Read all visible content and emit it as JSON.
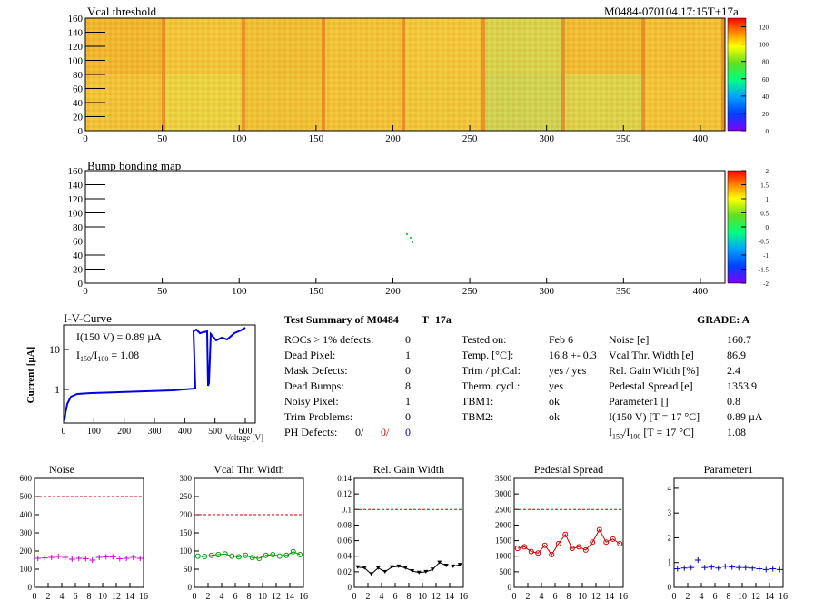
{
  "vcal_map": {
    "title": "Vcal threshold",
    "module_label": "M0484-070104.17:15T+17a",
    "x_ticks": [
      "0",
      "50",
      "100",
      "150",
      "200",
      "250",
      "300",
      "350",
      "400"
    ],
    "y_ticks": [
      "0",
      "20",
      "40",
      "60",
      "80",
      "100",
      "120",
      "140",
      "160"
    ],
    "z_ticks": [
      "0",
      "20",
      "40",
      "60",
      "80",
      "100",
      "120"
    ]
  },
  "bump_map": {
    "title": "Bump bonding map",
    "x_ticks": [
      "0",
      "50",
      "100",
      "150",
      "200",
      "250",
      "300",
      "350",
      "400"
    ],
    "y_ticks": [
      "0",
      "20",
      "40",
      "60",
      "80",
      "100",
      "120",
      "140",
      "160"
    ],
    "z_ticks": [
      "-2",
      "-1.5",
      "-1",
      "-0.5",
      "0",
      "0.5",
      "1",
      "1.5",
      "2"
    ]
  },
  "iv": {
    "title": "I-V-Curve",
    "ylabel": "Current [µA]",
    "xlabel": "Voltage [V]",
    "leg1": "I(150 V) = 0.89 µA",
    "leg2a": "I",
    "leg2sub1": "150",
    "leg2b": "/I",
    "leg2sub2": "100",
    "leg2c": " =  1.08",
    "x_ticks": [
      "0",
      "100",
      "200",
      "300",
      "400",
      "500",
      "600"
    ],
    "y_ticks": [
      "1",
      "10"
    ]
  },
  "summary": {
    "title": "Test Summary of M0484",
    "temp_tag": "T+17a",
    "grade": "GRADE:  A",
    "left": [
      {
        "label": "ROCs > 1% defects:",
        "value": "0"
      },
      {
        "label": "Dead Pixel:",
        "value": "1"
      },
      {
        "label": "Mask Defects:",
        "value": "0"
      },
      {
        "label": "Dead Bumps:",
        "value": "8"
      },
      {
        "label": "Noisy Pixel:",
        "value": "1"
      },
      {
        "label": "Trim Problems:",
        "value": "0"
      }
    ],
    "ph_label": "PH Defects:",
    "ph_v1": "0/",
    "ph_v2": "0/",
    "ph_v3": "0",
    "mid": [
      {
        "label": "Tested on:",
        "value": "Feb 6"
      },
      {
        "label": "Temp. [°C]:",
        "value": "16.8 +- 0.3"
      },
      {
        "label": "Trim / phCal:",
        "value": "yes / yes"
      },
      {
        "label": "Therm. cycl.:",
        "value": "yes"
      },
      {
        "label": "TBM1:",
        "value": "ok"
      },
      {
        "label": "TBM2:",
        "value": "ok"
      }
    ],
    "right": [
      {
        "label": "Noise [e]",
        "value": "160.7"
      },
      {
        "label": "Vcal Thr. Width [e]",
        "value": "86.9"
      },
      {
        "label": "Rel. Gain Width [%]",
        "value": "2.4"
      },
      {
        "label": "Pedestal Spread [e]",
        "value": "1353.9"
      },
      {
        "label": "Parameter1 []",
        "value": "0.8"
      },
      {
        "label": "I(150 V) [T = 17 °C]",
        "value": "0.89 µA"
      }
    ],
    "ratio_a": "I",
    "ratio_sub1": "150",
    "ratio_b": "/I",
    "ratio_sub2": "100",
    "ratio_c": "  [T = 17 °C]",
    "ratio_value": "1.08"
  },
  "chart_data": [
    {
      "type": "scatter",
      "title": "Noise",
      "x": [
        0,
        1,
        2,
        3,
        4,
        5,
        6,
        7,
        8,
        9,
        10,
        11,
        12,
        13,
        14,
        15
      ],
      "values": [
        160,
        162,
        165,
        170,
        165,
        155,
        160,
        158,
        150,
        165,
        168,
        168,
        158,
        160,
        165,
        160
      ],
      "ylim": [
        0,
        600
      ],
      "xlim": [
        0,
        16
      ],
      "y_ticks": [
        "0",
        "100",
        "200",
        "300",
        "400",
        "500",
        "600"
      ],
      "ref_line": 500,
      "color": "#cc00cc"
    },
    {
      "type": "line",
      "title": "Vcal Thr. Width",
      "x": [
        0,
        1,
        2,
        3,
        4,
        5,
        6,
        7,
        8,
        9,
        10,
        11,
        12,
        13,
        14,
        15
      ],
      "values": [
        86,
        85,
        88,
        90,
        92,
        86,
        84,
        88,
        82,
        80,
        88,
        90,
        86,
        88,
        98,
        90
      ],
      "ylim": [
        0,
        300
      ],
      "xlim": [
        0,
        16
      ],
      "y_ticks": [
        "0",
        "50",
        "100",
        "150",
        "200",
        "250",
        "300"
      ],
      "ref_line": 200,
      "color": "#009900"
    },
    {
      "type": "line",
      "title": "Rel. Gain Width",
      "x": [
        0,
        1,
        2,
        3,
        4,
        5,
        6,
        7,
        8,
        9,
        10,
        11,
        12,
        13,
        14,
        15
      ],
      "values": [
        0.026,
        0.025,
        0.017,
        0.025,
        0.02,
        0.026,
        0.027,
        0.025,
        0.021,
        0.019,
        0.02,
        0.023,
        0.032,
        0.028,
        0.027,
        0.029
      ],
      "ylim": [
        0,
        0.14
      ],
      "xlim": [
        0,
        16
      ],
      "y_ticks": [
        "0",
        "0.02",
        "0.04",
        "0.06",
        "0.08",
        "0.1",
        "0.12",
        "0.14"
      ],
      "ref_line": 0.1,
      "color": "#000000"
    },
    {
      "type": "line",
      "title": "Pedestal Spread",
      "x": [
        0,
        1,
        2,
        3,
        4,
        5,
        6,
        7,
        8,
        9,
        10,
        11,
        12,
        13,
        14,
        15
      ],
      "values": [
        1250,
        1300,
        1150,
        1100,
        1350,
        1050,
        1400,
        1700,
        1250,
        1300,
        1200,
        1450,
        1850,
        1450,
        1550,
        1400
      ],
      "ylim": [
        0,
        3500
      ],
      "xlim": [
        0,
        16
      ],
      "y_ticks": [
        "0",
        "500",
        "1000",
        "1500",
        "2000",
        "2500",
        "3000",
        "3500"
      ],
      "ref_line": 2500,
      "color": "#cc0000"
    },
    {
      "type": "scatter",
      "title": "Parameter1",
      "x": [
        0,
        1,
        2,
        3,
        4,
        5,
        6,
        7,
        8,
        9,
        10,
        11,
        12,
        13,
        14,
        15
      ],
      "values": [
        0.75,
        0.78,
        0.8,
        1.1,
        0.8,
        0.82,
        0.78,
        0.85,
        0.82,
        0.8,
        0.8,
        0.78,
        0.75,
        0.72,
        0.75,
        0.72
      ],
      "ylim": [
        0,
        4.4
      ],
      "xlim": [
        0,
        16
      ],
      "y_ticks": [
        "0",
        "1",
        "2",
        "3",
        "4"
      ],
      "color": "#0000cc"
    }
  ],
  "small_x_ticks": [
    "0",
    "2",
    "4",
    "6",
    "8",
    "10",
    "12",
    "14",
    "16"
  ]
}
